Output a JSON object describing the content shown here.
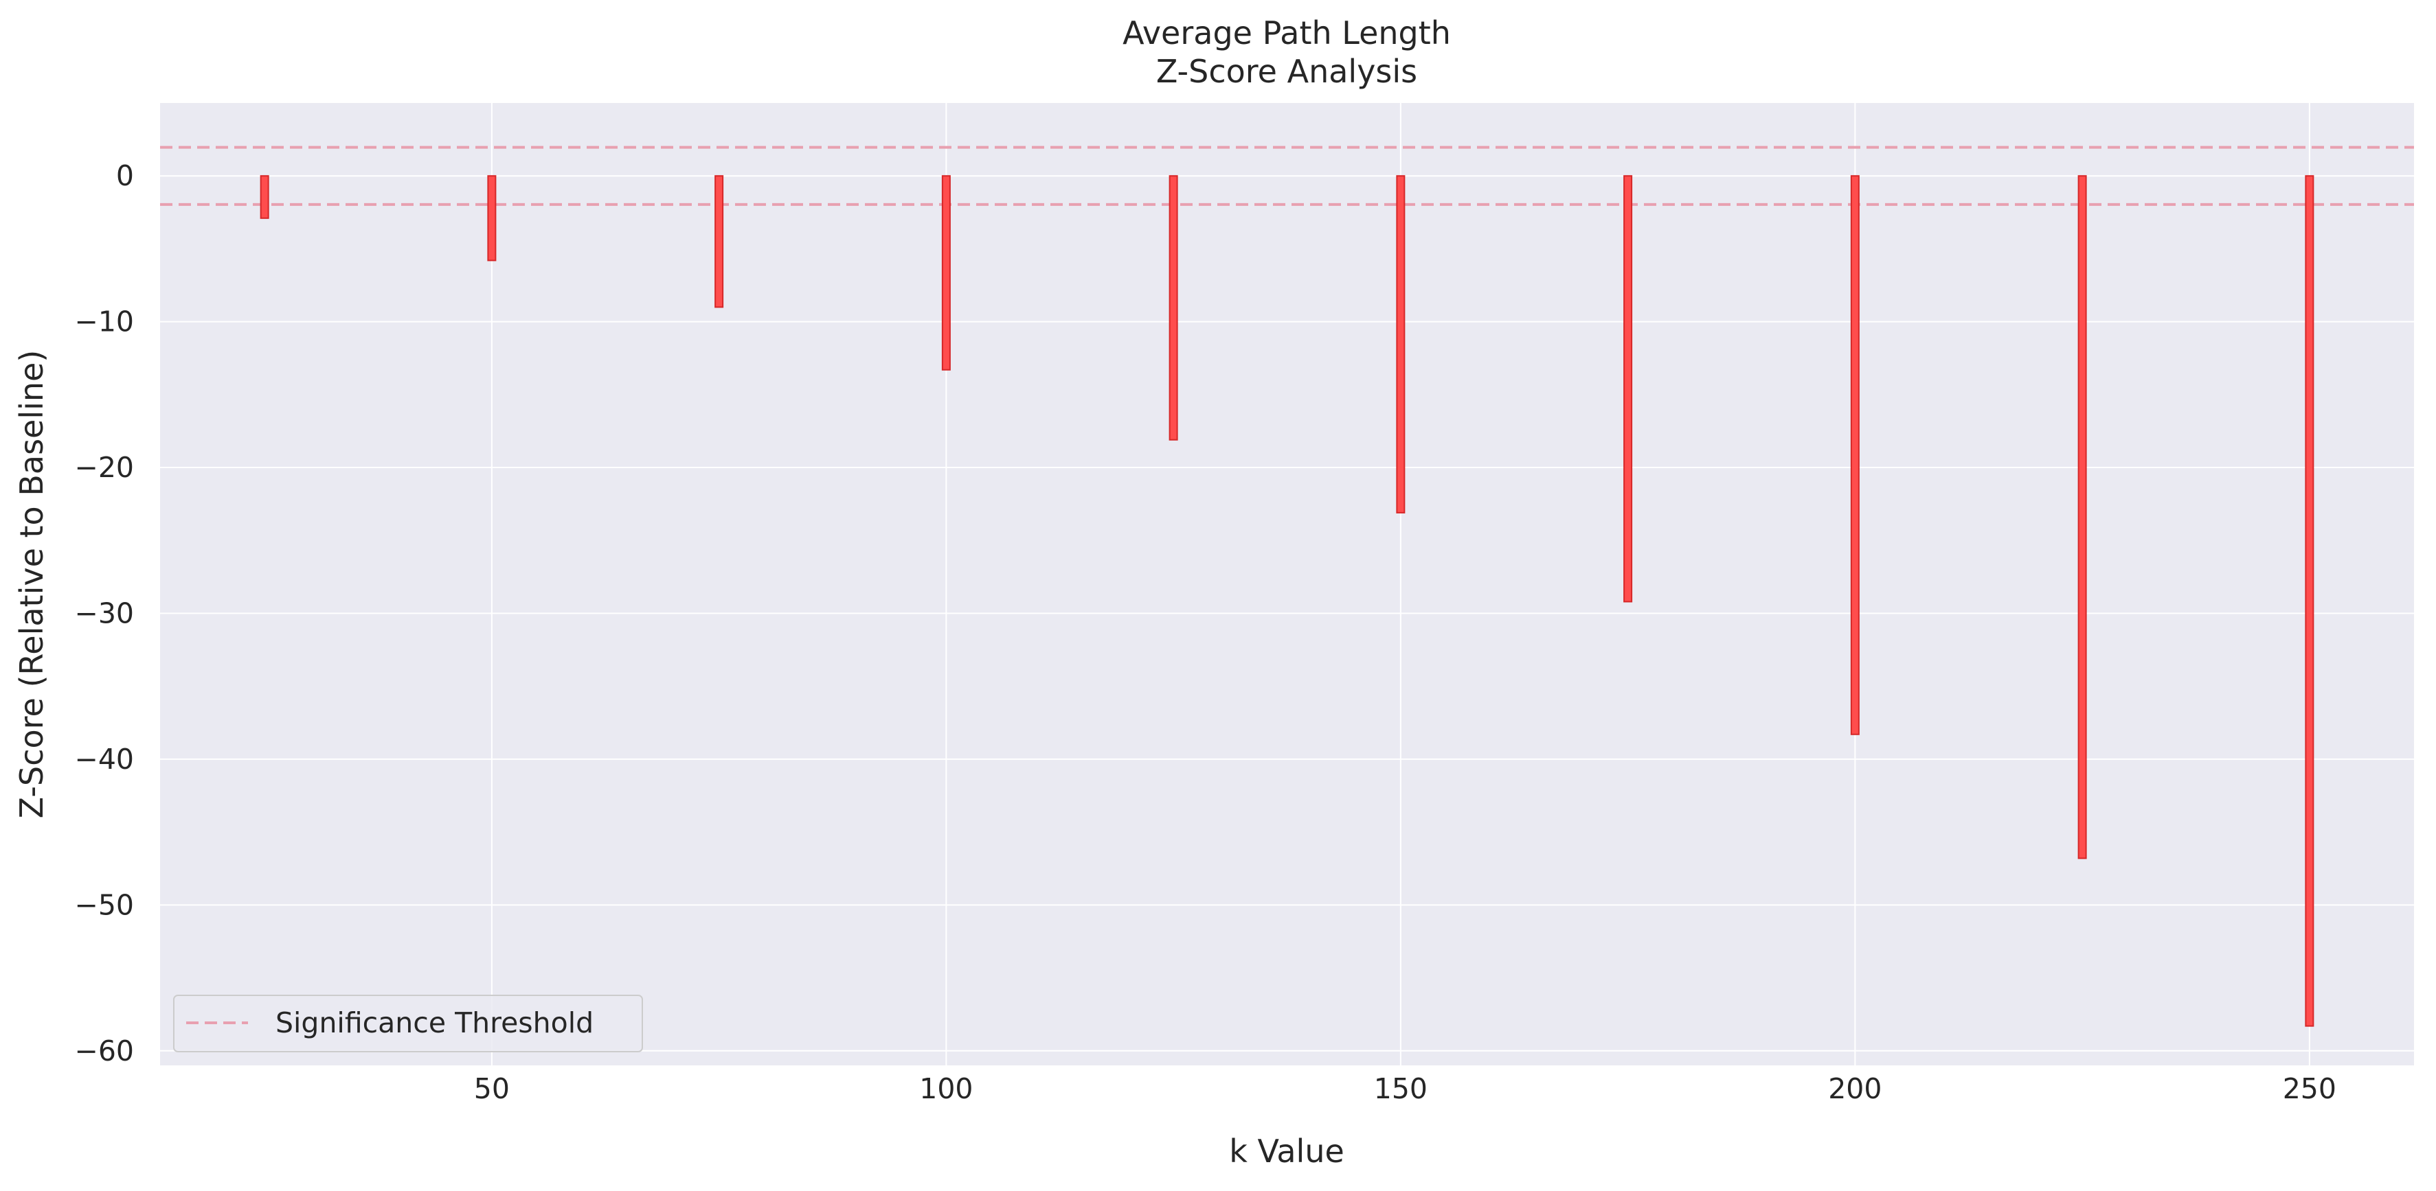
{
  "chart_data": {
    "type": "bar",
    "title": "Average Path Length",
    "subtitle": "Z-Score Analysis",
    "xlabel": "k Value",
    "ylabel": "Z-Score (Relative to Baseline)",
    "x": [
      25,
      50,
      75,
      100,
      125,
      150,
      175,
      200,
      225,
      250
    ],
    "values": [
      -2.9,
      -5.8,
      -9.0,
      -13.3,
      -18.1,
      -23.1,
      -29.2,
      -38.3,
      -46.8,
      -58.3
    ],
    "xlim": [
      13.5,
      261.5
    ],
    "ylim": [
      -61,
      5
    ],
    "xticks": [
      50,
      100,
      150,
      200,
      250
    ],
    "xtick_labels": [
      "50",
      "100",
      "150",
      "200",
      "250"
    ],
    "yticks": [
      0,
      -10,
      -20,
      -30,
      -40,
      -50,
      -60
    ],
    "ytick_labels": [
      "0",
      "−10",
      "−20",
      "−30",
      "−40",
      "−50",
      "−60"
    ],
    "thresholds": [
      1.96,
      -1.96
    ],
    "legend": {
      "position": "lower-left",
      "entries": [
        "Significance Threshold"
      ]
    },
    "grid": true,
    "colors": {
      "bar_fill": "#ff4d4d",
      "bar_edge": "#d62728",
      "threshold": "#e8a0b0",
      "plot_background": "#eaeaf2",
      "grid": "#ffffff"
    }
  }
}
